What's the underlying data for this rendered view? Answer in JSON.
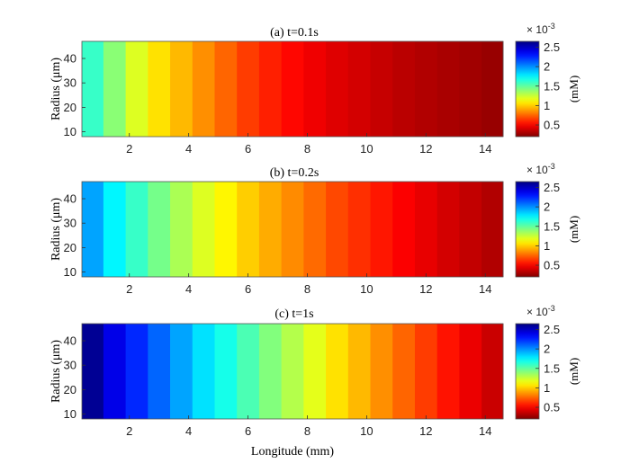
{
  "chart_data": [
    {
      "type": "heatmap",
      "title": "(a) t=0.1s",
      "ylabel": "Radius (μm)",
      "xlabel": "",
      "xlim": [
        0.4,
        14.6
      ],
      "ylim": [
        8,
        47
      ],
      "xticks": [
        2,
        4,
        6,
        8,
        10,
        12,
        14
      ],
      "yticks": [
        10,
        20,
        30,
        40
      ],
      "colorbar": {
        "ticks": [
          0.5,
          1,
          1.5,
          2,
          2.5
        ],
        "exponent": "× 10",
        "exponent_power": "-3",
        "label": "(mM)",
        "range": [
          0.2,
          2.65
        ]
      },
      "x_centers": [
        0.75,
        1.5,
        2.25,
        3.0,
        3.75,
        4.5,
        5.25,
        6.0,
        6.75,
        7.5,
        8.25,
        9.0,
        9.75,
        10.5,
        11.25,
        12.0,
        12.75,
        13.5,
        14.25
      ],
      "values": [
        1.6,
        1.4,
        1.2,
        1.05,
        0.95,
        0.85,
        0.75,
        0.65,
        0.58,
        0.52,
        0.47,
        0.43,
        0.4,
        0.37,
        0.34,
        0.32,
        0.3,
        0.28,
        0.26
      ]
    },
    {
      "type": "heatmap",
      "title": "(b) t=0.2s",
      "ylabel": "Radius (μm)",
      "xlabel": "",
      "xlim": [
        0.4,
        14.6
      ],
      "ylim": [
        8,
        47
      ],
      "xticks": [
        2,
        4,
        6,
        8,
        10,
        12,
        14
      ],
      "yticks": [
        10,
        20,
        30,
        40
      ],
      "colorbar": {
        "ticks": [
          0.5,
          1,
          1.5,
          2,
          2.5
        ],
        "exponent": "× 10",
        "exponent_power": "-3",
        "label": "(mM)",
        "range": [
          0.2,
          2.65
        ]
      },
      "x_centers": [
        0.75,
        1.5,
        2.25,
        3.0,
        3.75,
        4.5,
        5.25,
        6.0,
        6.75,
        7.5,
        8.25,
        9.0,
        9.75,
        10.5,
        11.25,
        12.0,
        12.75,
        13.5,
        14.25
      ],
      "values": [
        1.95,
        1.75,
        1.6,
        1.45,
        1.32,
        1.2,
        1.1,
        1.0,
        0.92,
        0.84,
        0.76,
        0.68,
        0.62,
        0.56,
        0.5,
        0.45,
        0.4,
        0.36,
        0.32
      ]
    },
    {
      "type": "heatmap",
      "title": "(c) t=1s",
      "ylabel": "Radius (μm)",
      "xlabel": "Longitude (mm)",
      "xlim": [
        0.4,
        14.6
      ],
      "ylim": [
        8,
        47
      ],
      "xticks": [
        2,
        4,
        6,
        8,
        10,
        12,
        14
      ],
      "yticks": [
        10,
        20,
        30,
        40
      ],
      "colorbar": {
        "ticks": [
          0.5,
          1,
          1.5,
          2,
          2.5
        ],
        "exponent": "× 10",
        "exponent_power": "-3",
        "label": "(mM)",
        "range": [
          0.2,
          2.65
        ]
      },
      "x_centers": [
        0.75,
        1.5,
        2.25,
        3.0,
        3.75,
        4.5,
        5.25,
        6.0,
        6.75,
        7.5,
        8.25,
        9.0,
        9.75,
        10.5,
        11.25,
        12.0,
        12.75,
        13.5,
        14.25
      ],
      "values": [
        2.6,
        2.4,
        2.25,
        2.1,
        1.95,
        1.8,
        1.68,
        1.55,
        1.42,
        1.3,
        1.18,
        1.05,
        0.95,
        0.85,
        0.75,
        0.65,
        0.55,
        0.46,
        0.38
      ]
    }
  ]
}
